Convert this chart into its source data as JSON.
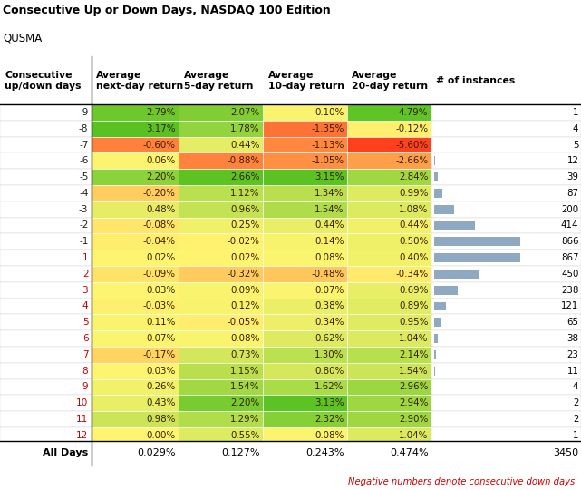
{
  "rows": [
    {
      "day": -9,
      "next": 2.79,
      "five": 2.07,
      "ten": 0.1,
      "twenty": 4.79,
      "n": 1
    },
    {
      "day": -8,
      "next": 3.17,
      "five": 1.78,
      "ten": -1.35,
      "twenty": -0.12,
      "n": 4
    },
    {
      "day": -7,
      "next": -0.6,
      "five": 0.44,
      "ten": -1.13,
      "twenty": -5.6,
      "n": 5
    },
    {
      "day": -6,
      "next": 0.06,
      "five": -0.88,
      "ten": -1.05,
      "twenty": -2.66,
      "n": 12
    },
    {
      "day": -5,
      "next": 2.2,
      "five": 2.66,
      "ten": 3.15,
      "twenty": 2.84,
      "n": 39
    },
    {
      "day": -4,
      "next": -0.2,
      "five": 1.12,
      "ten": 1.34,
      "twenty": 0.99,
      "n": 87
    },
    {
      "day": -3,
      "next": 0.48,
      "five": 0.96,
      "ten": 1.54,
      "twenty": 1.08,
      "n": 200
    },
    {
      "day": -2,
      "next": -0.08,
      "five": 0.25,
      "ten": 0.44,
      "twenty": 0.44,
      "n": 414
    },
    {
      "day": -1,
      "next": -0.04,
      "five": -0.02,
      "ten": 0.14,
      "twenty": 0.5,
      "n": 866
    },
    {
      "day": 1,
      "next": 0.02,
      "five": 0.02,
      "ten": 0.08,
      "twenty": 0.4,
      "n": 867
    },
    {
      "day": 2,
      "next": -0.09,
      "five": -0.32,
      "ten": -0.48,
      "twenty": -0.34,
      "n": 450
    },
    {
      "day": 3,
      "next": 0.03,
      "five": 0.09,
      "ten": 0.07,
      "twenty": 0.69,
      "n": 238
    },
    {
      "day": 4,
      "next": -0.03,
      "five": 0.12,
      "ten": 0.38,
      "twenty": 0.89,
      "n": 121
    },
    {
      "day": 5,
      "next": 0.11,
      "five": -0.05,
      "ten": 0.34,
      "twenty": 0.95,
      "n": 65
    },
    {
      "day": 6,
      "next": 0.07,
      "five": 0.08,
      "ten": 0.62,
      "twenty": 1.04,
      "n": 38
    },
    {
      "day": 7,
      "next": -0.17,
      "five": 0.73,
      "ten": 1.3,
      "twenty": 2.14,
      "n": 23
    },
    {
      "day": 8,
      "next": 0.03,
      "five": 1.15,
      "ten": 0.8,
      "twenty": 1.54,
      "n": 11
    },
    {
      "day": 9,
      "next": 0.26,
      "five": 1.54,
      "ten": 1.62,
      "twenty": 2.96,
      "n": 4
    },
    {
      "day": 10,
      "next": 0.43,
      "five": 2.2,
      "ten": 3.13,
      "twenty": 2.94,
      "n": 2
    },
    {
      "day": 11,
      "next": 0.98,
      "five": 1.29,
      "ten": 2.32,
      "twenty": 2.9,
      "n": 2
    },
    {
      "day": 12,
      "next": 0.0,
      "five": 0.55,
      "ten": 0.08,
      "twenty": 1.04,
      "n": 1
    }
  ],
  "all_days": {
    "next": 0.029,
    "five": 0.127,
    "ten": 0.243,
    "twenty": 0.474,
    "n": 3450
  },
  "title": "Consecutive Up or Down Days, NASDAQ 100 Edition",
  "subtitle": "QUSMA",
  "col_headers": [
    "Consecutive\nup/down days",
    "Average\nnext-day return",
    "Average\n5-day return",
    "Average\n10-day return",
    "Average\n20-day return",
    "# of instances"
  ],
  "footer": "Negative numbers denote consecutive down days.",
  "bg_color": "#FFFFFF",
  "bar_color": "#8EA9C1",
  "col_vmaxes": [
    3.5,
    3.0,
    3.5,
    5.5
  ],
  "col_vmins": [
    -1.0,
    -1.5,
    -2.0,
    -6.0
  ],
  "max_n": 867
}
